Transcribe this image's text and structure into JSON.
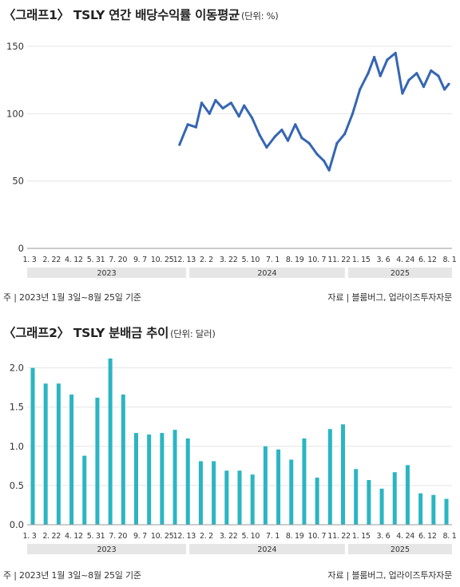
{
  "chart_data": [
    {
      "type": "line",
      "title": "〈그래프1〉 TSLY 연간 배당수익률 이동평균",
      "unit": "(단위: %)",
      "ylim": [
        0,
        150
      ],
      "yticks": [
        0,
        50,
        100,
        150
      ],
      "grid": "horizontal",
      "color": "#3566b3",
      "x_tick_labels": [
        "1. 3",
        "2. 22",
        "4. 12",
        "5. 31",
        "7. 20",
        "9. 7",
        "10. 25",
        "12. 13",
        "2. 2",
        "3. 22",
        "5. 10",
        "7. 1",
        "8. 19",
        "10. 7",
        "11. 22",
        "1. 15",
        "3. 6",
        "4. 24",
        "6. 12",
        "8. 1"
      ],
      "years": [
        "2023",
        "2024",
        "2025"
      ],
      "x": [
        "2023-12-13",
        "2024-01-01",
        "2024-01-20",
        "2024-02-02",
        "2024-02-20",
        "2024-03-05",
        "2024-03-22",
        "2024-04-10",
        "2024-04-28",
        "2024-05-10",
        "2024-05-28",
        "2024-06-15",
        "2024-07-01",
        "2024-07-20",
        "2024-08-05",
        "2024-08-19",
        "2024-09-05",
        "2024-09-20",
        "2024-10-07",
        "2024-10-25",
        "2024-11-10",
        "2024-11-22",
        "2024-12-10",
        "2024-12-28",
        "2025-01-15",
        "2025-02-01",
        "2025-02-20",
        "2025-03-06",
        "2025-03-20",
        "2025-04-05",
        "2025-04-24",
        "2025-05-10",
        "2025-05-25",
        "2025-06-12",
        "2025-06-28",
        "2025-07-15",
        "2025-08-01",
        "2025-08-15",
        "2025-08-25"
      ],
      "y": [
        77,
        92,
        90,
        108,
        100,
        110,
        104,
        108,
        98,
        106,
        97,
        84,
        75,
        83,
        88,
        80,
        92,
        82,
        78,
        70,
        65,
        58,
        78,
        85,
        100,
        118,
        130,
        142,
        128,
        140,
        145,
        115,
        125,
        130,
        120,
        132,
        128,
        118,
        122
      ]
    },
    {
      "type": "bar",
      "title": "〈그래프2〉 TSLY 분배금 추이",
      "unit": "(단위: 달러)",
      "ylim": [
        0,
        2.2
      ],
      "yticks": [
        "0.0",
        "0.5",
        "1.0",
        "1.5",
        "2.0"
      ],
      "grid": "horizontal",
      "color": "#2bb5c3",
      "x_tick_labels": [
        "1. 3",
        "2. 22",
        "4. 12",
        "5. 31",
        "7. 20",
        "9. 7",
        "10. 25",
        "12. 13",
        "2. 2",
        "3. 22",
        "5. 10",
        "7. 1",
        "8. 19",
        "10. 7",
        "11. 22",
        "1. 15",
        "3. 6",
        "4. 24",
        "6. 12",
        "8. 1"
      ],
      "years": [
        "2023",
        "2024",
        "2025"
      ],
      "values": [
        2.0,
        1.8,
        1.8,
        1.66,
        0.88,
        1.62,
        2.12,
        1.66,
        1.17,
        1.15,
        1.17,
        1.21,
        1.1,
        0.81,
        0.81,
        0.69,
        0.69,
        0.64,
        1.0,
        0.96,
        0.83,
        1.1,
        0.6,
        1.22,
        1.28,
        0.71,
        0.57,
        0.46,
        0.67,
        0.76,
        0.4,
        0.38,
        0.33
      ]
    }
  ],
  "chart1_footer": {
    "left": "주 | 2023년 1월 3일~8월 25일 기준",
    "right": "자료 | 블룸버그, 업라이즈투자자문"
  },
  "chart2_footer": {
    "left": "주 | 2023년 1월 3일~8월 25일 기준",
    "right": "자료 | 블룸버그, 업라이즈투자자문"
  }
}
